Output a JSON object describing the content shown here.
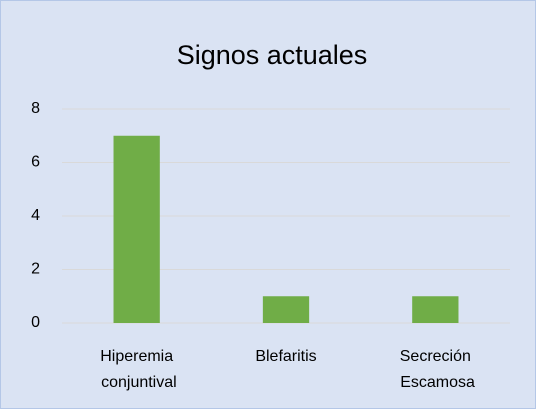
{
  "chart_data": {
    "type": "bar",
    "title": "Signos actuales",
    "categories": [
      "Hiperemia conjuntival",
      "Blefaritis",
      "Secreción Escamosa"
    ],
    "values": [
      7,
      1,
      1
    ],
    "color": "#70ad47",
    "ylim": [
      0,
      8
    ],
    "yticks": [
      0,
      2,
      4,
      6,
      8
    ],
    "grid": true
  }
}
